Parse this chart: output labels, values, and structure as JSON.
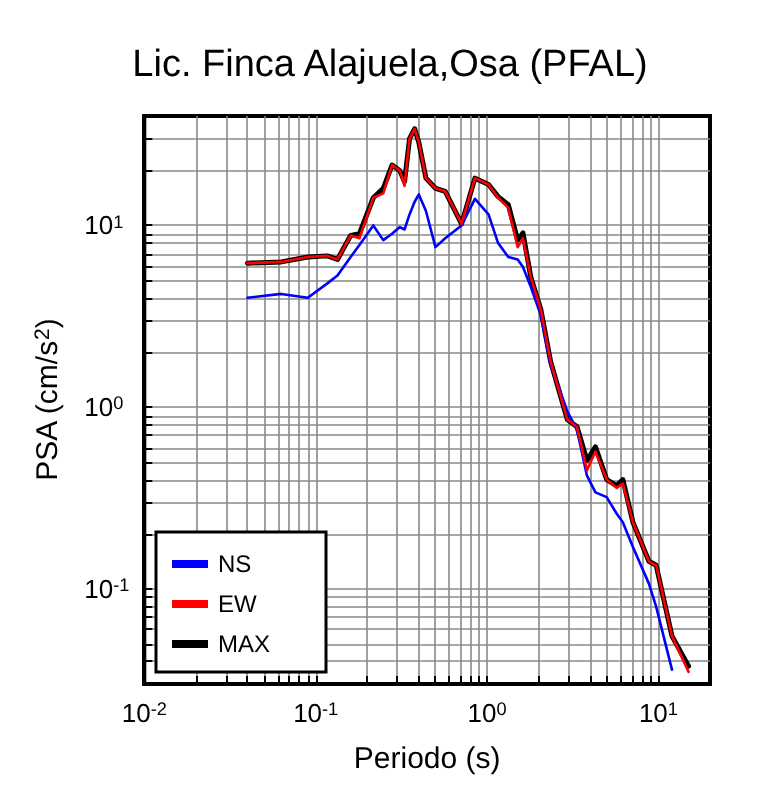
{
  "chart_data": {
    "type": "line",
    "title": "Lic. Finca Alajuela,Osa (PFAL)",
    "xlabel": "Periodo (s)",
    "ylabel": "PSA (cm/s$^{2}$)",
    "log": "xy",
    "grid": true,
    "legend": "bottom left",
    "line_style": "solid",
    "marker": "none",
    "x": [
      0.04,
      0.063,
      0.09,
      0.117,
      0.134,
      0.16,
      0.18,
      0.217,
      0.248,
      0.279,
      0.31,
      0.33,
      0.353,
      0.378,
      0.4,
      0.44,
      0.5,
      0.57,
      0.71,
      0.85,
      1.02,
      1.16,
      1.33,
      1.51,
      1.62,
      1.8,
      2.06,
      2.35,
      2.94,
      3.35,
      3.83,
      4.29,
      4.99,
      5.7,
      6.2,
      7.1,
      8.8,
      9.7,
      12,
      15
    ],
    "xlim": [
      0.01,
      20
    ],
    "ylim": [
      0.03,
      40
    ],
    "xticks": [
      {
        "value": 0.01,
        "label": "10$^{-2}$"
      },
      {
        "value": 0.02,
        "label": null
      },
      {
        "value": 0.03,
        "label": null
      },
      {
        "value": 0.04,
        "label": null
      },
      {
        "value": 0.05,
        "label": null
      },
      {
        "value": 0.06,
        "label": null
      },
      {
        "value": 0.07,
        "label": null
      },
      {
        "value": 0.08,
        "label": null
      },
      {
        "value": 0.09,
        "label": null
      },
      {
        "value": 0.1,
        "label": "10$^{-1}$"
      },
      {
        "value": 0.2,
        "label": null
      },
      {
        "value": 0.3,
        "label": null
      },
      {
        "value": 0.4,
        "label": null
      },
      {
        "value": 0.5,
        "label": null
      },
      {
        "value": 0.6,
        "label": null
      },
      {
        "value": 0.7,
        "label": null
      },
      {
        "value": 0.8,
        "label": null
      },
      {
        "value": 0.9,
        "label": null
      },
      {
        "value": 1,
        "label": "10$^{0}$"
      },
      {
        "value": 2,
        "label": null
      },
      {
        "value": 3,
        "label": null
      },
      {
        "value": 4,
        "label": null
      },
      {
        "value": 5,
        "label": null
      },
      {
        "value": 6,
        "label": null
      },
      {
        "value": 7,
        "label": null
      },
      {
        "value": 8,
        "label": null
      },
      {
        "value": 9,
        "label": null
      },
      {
        "value": 10,
        "label": "10$^{1}$"
      }
    ],
    "yticks": [
      {
        "value": 0.04,
        "label": null
      },
      {
        "value": 0.05,
        "label": null
      },
      {
        "value": 0.06,
        "label": null
      },
      {
        "value": 0.07,
        "label": null
      },
      {
        "value": 0.08,
        "label": null
      },
      {
        "value": 0.09,
        "label": null
      },
      {
        "value": 0.1,
        "label": "10$^{-1}$"
      },
      {
        "value": 0.2,
        "label": null
      },
      {
        "value": 0.3,
        "label": null
      },
      {
        "value": 0.4,
        "label": null
      },
      {
        "value": 0.5,
        "label": null
      },
      {
        "value": 0.6,
        "label": null
      },
      {
        "value": 0.7,
        "label": null
      },
      {
        "value": 0.8,
        "label": null
      },
      {
        "value": 0.9,
        "label": null
      },
      {
        "value": 1,
        "label": "10$^{0}$"
      },
      {
        "value": 2,
        "label": null
      },
      {
        "value": 3,
        "label": null
      },
      {
        "value": 4,
        "label": null
      },
      {
        "value": 5,
        "label": null
      },
      {
        "value": 6,
        "label": null
      },
      {
        "value": 7,
        "label": null
      },
      {
        "value": 8,
        "label": null
      },
      {
        "value": 9,
        "label": null
      },
      {
        "value": 10,
        "label": "10$^{1}$"
      },
      {
        "value": 20,
        "label": null
      },
      {
        "value": 30,
        "label": null
      }
    ],
    "series": [
      {
        "name": "NS",
        "color": "#0000ff",
        "values": [
          4.0,
          4.2,
          4.0,
          4.8,
          5.3,
          6.7,
          7.8,
          10.0,
          8.3,
          9.0,
          9.8,
          9.5,
          11.5,
          13.5,
          14.8,
          12,
          7.6,
          8.5,
          10,
          14,
          11.5,
          8,
          6.7,
          6.5,
          5.9,
          4.6,
          3.2,
          1.7,
          0.95,
          0.75,
          0.42,
          0.34,
          0.32,
          0.26,
          0.233,
          0.17,
          0.107,
          0.08,
          0.036,
          null
        ]
      },
      {
        "name": "EW",
        "color": "#ff0000",
        "values": [
          6.2,
          6.3,
          6.7,
          6.8,
          6.5,
          8.8,
          8.5,
          14.2,
          15,
          21.5,
          20,
          16.5,
          30,
          34,
          28.6,
          18.2,
          16,
          15.4,
          10.2,
          18.2,
          16.8,
          14.2,
          12.5,
          7.6,
          8.5,
          5.2,
          3.45,
          1.78,
          0.855,
          0.78,
          0.45,
          0.57,
          0.4,
          0.36,
          0.38,
          0.233,
          0.142,
          0.135,
          0.055,
          0.035
        ]
      },
      {
        "name": "MAX",
        "color": "#000000",
        "values": [
          6.2,
          6.3,
          6.7,
          6.8,
          6.5,
          8.8,
          9.0,
          14.2,
          16,
          21.5,
          20,
          17.4,
          30,
          34,
          28.6,
          18.2,
          16,
          15.4,
          10.2,
          18.2,
          16.8,
          14.4,
          13,
          8.3,
          9.1,
          5.2,
          3.45,
          1.78,
          0.855,
          0.78,
          0.51,
          0.605,
          0.4,
          0.37,
          0.4,
          0.233,
          0.142,
          0.135,
          0.055,
          0.0376
        ]
      }
    ]
  }
}
